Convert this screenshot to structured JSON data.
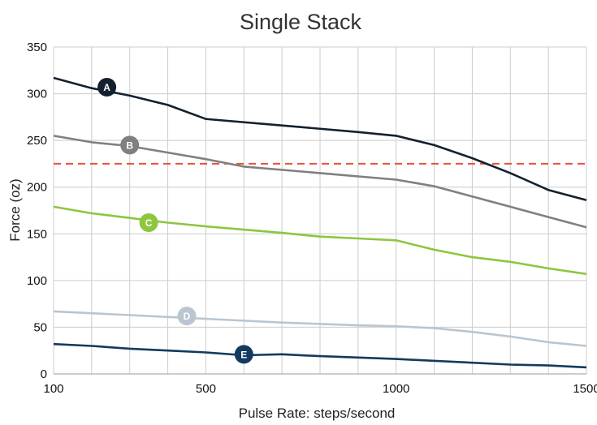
{
  "chart_data": {
    "type": "line",
    "title": "Single Stack",
    "xlabel": "Pulse Rate: steps/second",
    "ylabel": "Force (oz)",
    "xlim": [
      100,
      1500
    ],
    "ylim": [
      0,
      350
    ],
    "x_ticks": [
      "100",
      "500",
      "1000",
      "1500"
    ],
    "y_ticks": [
      "0",
      "50",
      "100",
      "150",
      "200",
      "250",
      "300",
      "350"
    ],
    "grid": true,
    "reference_line": {
      "y": 225,
      "color": "#e8503a",
      "style": "dashed"
    },
    "series": [
      {
        "name": "A",
        "color": "#14202e",
        "label_at": [
          240,
          307
        ],
        "points": [
          [
            100,
            317
          ],
          [
            200,
            306
          ],
          [
            300,
            298
          ],
          [
            400,
            288
          ],
          [
            500,
            273
          ],
          [
            700,
            266
          ],
          [
            900,
            259
          ],
          [
            1000,
            255
          ],
          [
            1100,
            245
          ],
          [
            1200,
            231
          ],
          [
            1300,
            215
          ],
          [
            1400,
            197
          ],
          [
            1500,
            186
          ]
        ]
      },
      {
        "name": "B",
        "color": "#808080",
        "label_at": [
          300,
          245
        ],
        "points": [
          [
            100,
            255
          ],
          [
            200,
            248
          ],
          [
            300,
            244
          ],
          [
            400,
            237
          ],
          [
            500,
            230
          ],
          [
            600,
            222
          ],
          [
            800,
            215
          ],
          [
            1000,
            208
          ],
          [
            1100,
            201
          ],
          [
            1200,
            190
          ],
          [
            1300,
            179
          ],
          [
            1400,
            168
          ],
          [
            1500,
            157
          ]
        ]
      },
      {
        "name": "C",
        "color": "#8dc63f",
        "label_at": [
          350,
          162
        ],
        "points": [
          [
            100,
            179
          ],
          [
            200,
            172
          ],
          [
            300,
            167
          ],
          [
            400,
            162
          ],
          [
            500,
            158
          ],
          [
            700,
            151
          ],
          [
            800,
            147
          ],
          [
            900,
            145
          ],
          [
            1000,
            143
          ],
          [
            1100,
            133
          ],
          [
            1200,
            125
          ],
          [
            1300,
            120
          ],
          [
            1400,
            113
          ],
          [
            1500,
            107
          ]
        ]
      },
      {
        "name": "D",
        "color": "#b9c6d1",
        "label_at": [
          450,
          62
        ],
        "points": [
          [
            100,
            67
          ],
          [
            200,
            65
          ],
          [
            300,
            63
          ],
          [
            400,
            61
          ],
          [
            500,
            59
          ],
          [
            700,
            55
          ],
          [
            900,
            52
          ],
          [
            1000,
            51
          ],
          [
            1100,
            49
          ],
          [
            1200,
            45
          ],
          [
            1300,
            40
          ],
          [
            1400,
            34
          ],
          [
            1500,
            30
          ]
        ]
      },
      {
        "name": "E",
        "color": "#133a5e",
        "label_at": [
          600,
          21
        ],
        "points": [
          [
            100,
            32
          ],
          [
            200,
            30
          ],
          [
            300,
            27
          ],
          [
            400,
            25
          ],
          [
            500,
            23
          ],
          [
            600,
            20
          ],
          [
            700,
            21
          ],
          [
            800,
            19
          ],
          [
            1000,
            16
          ],
          [
            1200,
            12
          ],
          [
            1300,
            10
          ],
          [
            1400,
            9
          ],
          [
            1500,
            7
          ]
        ]
      }
    ]
  }
}
